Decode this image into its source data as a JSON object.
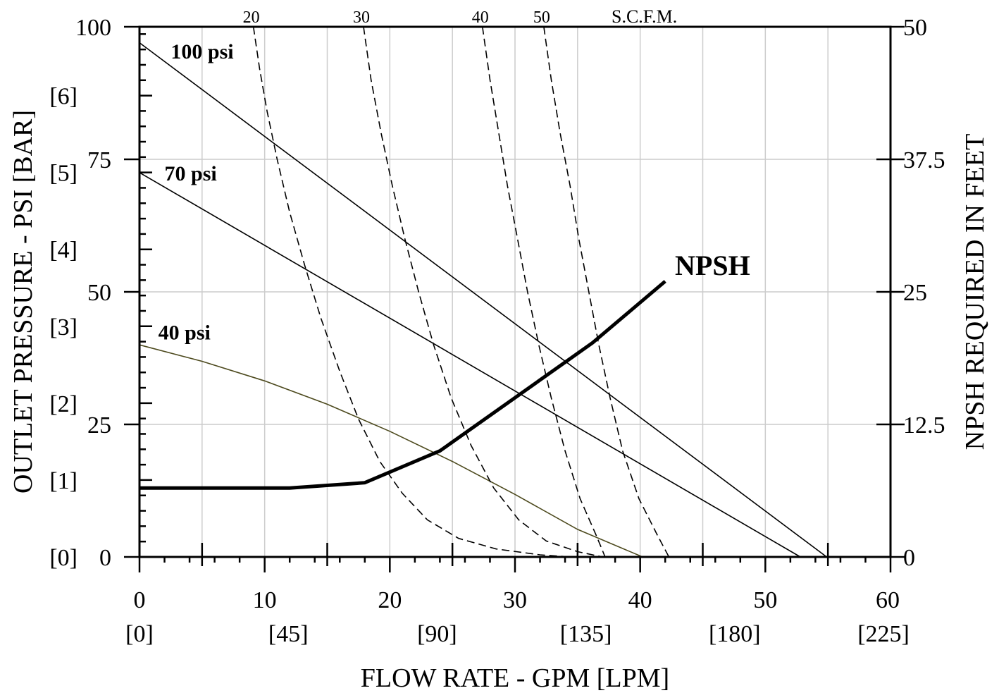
{
  "chart_data": {
    "type": "line",
    "ylabel_left": "OUTLET PRESSURE - PSI [BAR]",
    "ylabel_right": "NPSH REQUIRED IN FEET",
    "xlabel": "FLOW RATE - GPM [LPM]",
    "scfm_label": "S.C.F.M.",
    "npsh_label": "NPSH",
    "xlim": [
      0,
      60
    ],
    "ylim_left": [
      0,
      100
    ],
    "ylim_right": [
      0,
      50
    ],
    "grid": true,
    "x_ticks": [
      "0",
      "10",
      "20",
      "30",
      "40",
      "50",
      "60"
    ],
    "x_ticks_lpm": [
      "[0]",
      "[45]",
      "[90]",
      "[135]",
      "[180]",
      "[225]"
    ],
    "y_ticks_psi": [
      "0",
      "25",
      "50",
      "75",
      "100"
    ],
    "y_ticks_bar": [
      "[0]",
      "[1]",
      "[2]",
      "[3]",
      "[4]",
      "[5]",
      "[6]"
    ],
    "y_ticks_right": [
      "0",
      "12.5",
      "25",
      "37.5",
      "50"
    ],
    "pressure_curves": [
      {
        "name": "100 psi",
        "label_at": [
          2.5,
          94
        ],
        "points": [
          [
            0,
            97
          ],
          [
            54.9,
            0
          ]
        ]
      },
      {
        "name": "70 psi",
        "label_at": [
          2.0,
          71
        ],
        "points": [
          [
            0,
            72.5
          ],
          [
            52.8,
            0
          ]
        ]
      },
      {
        "name": "40 psi",
        "label_at": [
          1.5,
          41
        ],
        "color": "#4d4a1e",
        "points": [
          [
            0,
            40
          ],
          [
            5,
            36.9
          ],
          [
            10,
            33.2
          ],
          [
            15,
            28.8
          ],
          [
            20,
            23.7
          ],
          [
            25,
            18
          ],
          [
            30,
            11.8
          ],
          [
            35,
            5.2
          ],
          [
            40.2,
            0
          ]
        ]
      }
    ],
    "scfm_curves": [
      {
        "name": "20",
        "points": [
          [
            9.1,
            100
          ],
          [
            9.6,
            92
          ],
          [
            10.2,
            84
          ],
          [
            11,
            75
          ],
          [
            12,
            65
          ],
          [
            13.2,
            55
          ],
          [
            14.5,
            45
          ],
          [
            16,
            35
          ],
          [
            17.5,
            26
          ],
          [
            19.2,
            18
          ],
          [
            21,
            12
          ],
          [
            23,
            7
          ],
          [
            25.5,
            3.5
          ],
          [
            28.5,
            1.5
          ],
          [
            32,
            0.4
          ],
          [
            34.5,
            0
          ]
        ]
      },
      {
        "name": "30",
        "points": [
          [
            17.9,
            100
          ],
          [
            18.5,
            90
          ],
          [
            19.3,
            80
          ],
          [
            20.2,
            70
          ],
          [
            21.2,
            60
          ],
          [
            22.3,
            50
          ],
          [
            23.5,
            40
          ],
          [
            24.9,
            30
          ],
          [
            26.5,
            21
          ],
          [
            28.3,
            13
          ],
          [
            30.3,
            7
          ],
          [
            32.5,
            3
          ],
          [
            35,
            1
          ],
          [
            37,
            0
          ]
        ]
      },
      {
        "name": "40",
        "points": [
          [
            27.4,
            100
          ],
          [
            28,
            90
          ],
          [
            28.7,
            80
          ],
          [
            29.4,
            70
          ],
          [
            30.2,
            60
          ],
          [
            31,
            50
          ],
          [
            31.9,
            40
          ],
          [
            32.9,
            30
          ],
          [
            34,
            20
          ],
          [
            35.2,
            11
          ],
          [
            36.5,
            4
          ],
          [
            37.2,
            0
          ]
        ]
      },
      {
        "name": "50",
        "points": [
          [
            32.3,
            100
          ],
          [
            32.9,
            90
          ],
          [
            33.6,
            80
          ],
          [
            34.4,
            70
          ],
          [
            35.1,
            60
          ],
          [
            35.9,
            50
          ],
          [
            36.7,
            40
          ],
          [
            37.6,
            30
          ],
          [
            38.6,
            20
          ],
          [
            39.9,
            11
          ],
          [
            41.4,
            4
          ],
          [
            42.3,
            0
          ]
        ]
      }
    ],
    "npsh_curve": {
      "name": "NPSH",
      "units": "feet",
      "points": [
        [
          0,
          6.5
        ],
        [
          12,
          6.5
        ],
        [
          18,
          7
        ],
        [
          24,
          10
        ],
        [
          36.2,
          20.2
        ],
        [
          42,
          26
        ]
      ]
    }
  }
}
